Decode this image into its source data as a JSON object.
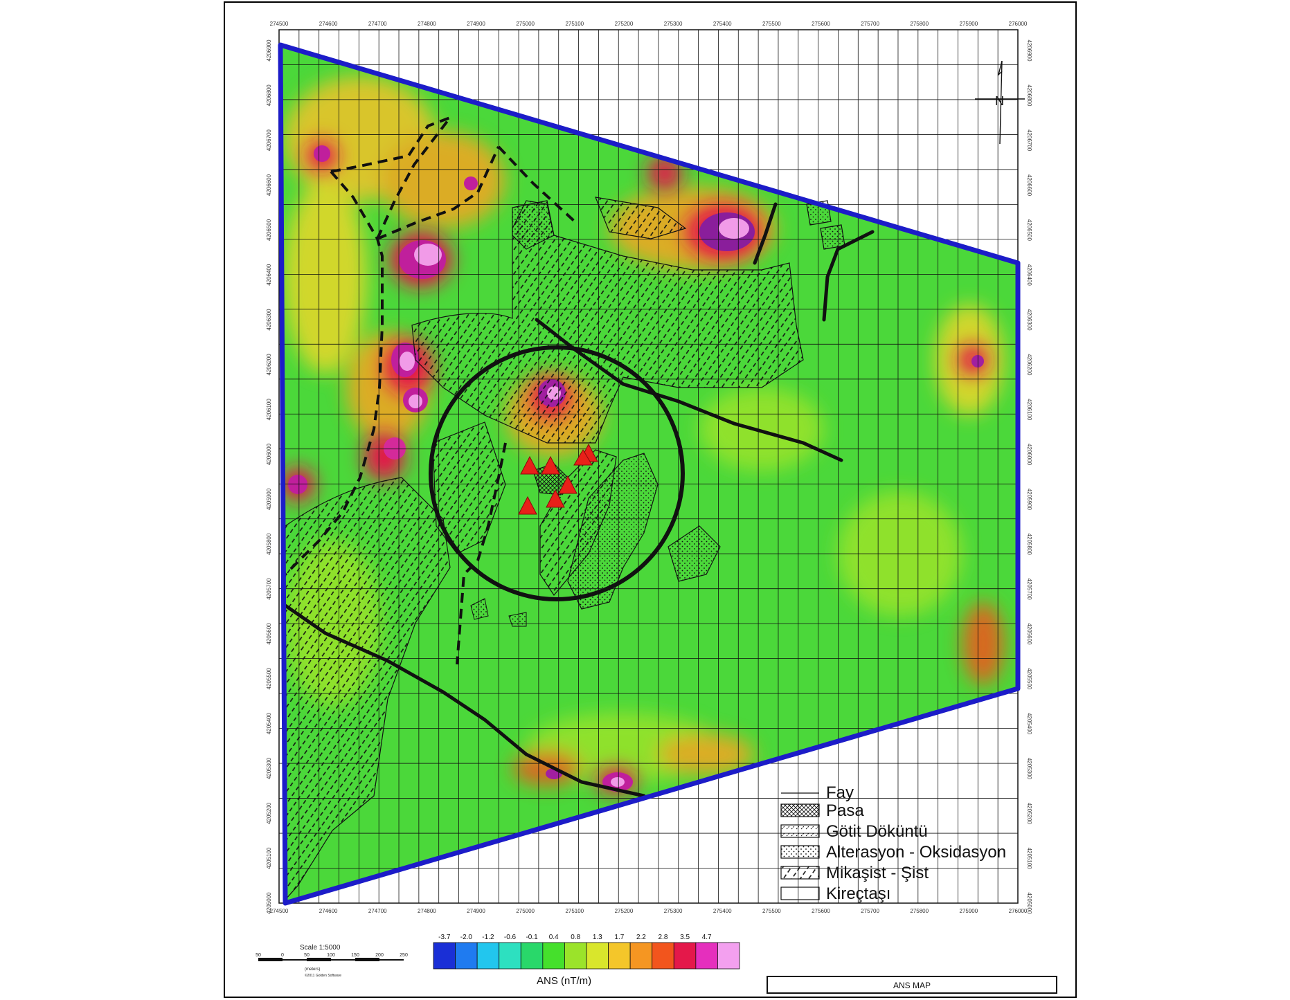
{
  "map": {
    "title": "ANS MAP",
    "x_ticks": [
      "274500",
      "274600",
      "274700",
      "274800",
      "274900",
      "275000",
      "275100",
      "275200",
      "275300",
      "275400",
      "275500",
      "275600",
      "275700",
      "275800",
      "275900",
      "276000"
    ],
    "y_ticks": [
      "4206900",
      "4206800",
      "4206700",
      "4206600",
      "4206500",
      "4206400",
      "4206300",
      "4206200",
      "4206100",
      "4206000",
      "4205900",
      "4205800",
      "4205700",
      "4205600",
      "4205500",
      "4205400",
      "4205300",
      "4205200",
      "4205100",
      "4205000"
    ],
    "y_ticks_right": [
      "4206900",
      "4206800",
      "4206700",
      "4206600",
      "4206500",
      "4206400",
      "4206300",
      "4206200",
      "4206100",
      "4206000",
      "4205900",
      "4205800",
      "4205700",
      "4205600",
      "4205500",
      "4205400",
      "4205300",
      "4205200",
      "4205100",
      "4205000"
    ],
    "north_label": "N"
  },
  "legend": {
    "items": [
      {
        "key": "fay",
        "label": "Fay"
      },
      {
        "key": "pasa",
        "label": "Pasa"
      },
      {
        "key": "gotit",
        "label": "Götit Döküntü"
      },
      {
        "key": "alterasyon",
        "label": "Alterasyon - Oksidasyon"
      },
      {
        "key": "mikasist",
        "label": "Mikaşist - Şist"
      },
      {
        "key": "kirectasi",
        "label": "Kireçtaşı"
      }
    ]
  },
  "scale": {
    "title": "Scale 1:5000",
    "ticks": [
      "50",
      "0",
      "50",
      "100",
      "150",
      "200",
      "250"
    ],
    "unit": "(meters)",
    "credit": "©2011 Golden Software"
  },
  "colorbar": {
    "values": [
      "-3.7",
      "-2.0",
      "-1.2",
      "-0.6",
      "-0.1",
      "0.4",
      "0.8",
      "1.3",
      "1.7",
      "2.2",
      "2.8",
      "3.5",
      "4.7"
    ],
    "label": "ANS (nT/m)",
    "colors": [
      "#1a2fd6",
      "#1f7bf0",
      "#22c6ee",
      "#2de0c0",
      "#29d86a",
      "#45e02c",
      "#9be32a",
      "#d9e62c",
      "#f4c62a",
      "#f59622",
      "#f2551d",
      "#e4184a",
      "#e52fbd",
      "#f3a0ef"
    ]
  }
}
